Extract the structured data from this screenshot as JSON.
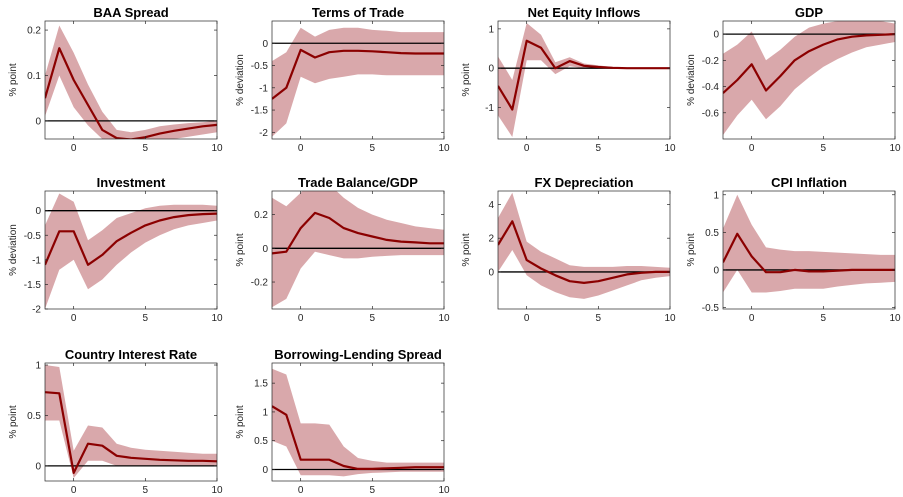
{
  "colors": {
    "line": "#8b0000",
    "band": "#d9a8ab",
    "zero": "#000000",
    "axis": "#262626"
  },
  "chart_data": [
    {
      "type": "line",
      "title": "BAA Spread",
      "ylabel": "% point",
      "xlim": [
        -2,
        10
      ],
      "ylim": [
        -0.04,
        0.22
      ],
      "xticks": [
        0,
        5,
        10
      ],
      "xtick_labels": [
        "0",
        "5",
        "10"
      ],
      "yticks": [
        0,
        0.1,
        0.2
      ],
      "ytick_labels": [
        "0",
        "0.1",
        "0.2"
      ],
      "x": [
        -2,
        -1,
        0,
        1,
        2,
        3,
        4,
        5,
        6,
        7,
        8,
        9,
        10
      ],
      "median": [
        0.05,
        0.16,
        0.09,
        0.035,
        -0.02,
        -0.038,
        -0.041,
        -0.036,
        -0.028,
        -0.022,
        -0.017,
        -0.012,
        -0.009
      ],
      "lower": [
        0.01,
        0.1,
        0.03,
        -0.01,
        -0.04,
        -0.05,
        -0.05,
        -0.05,
        -0.045,
        -0.04,
        -0.035,
        -0.03,
        -0.025
      ],
      "upper": [
        0.1,
        0.21,
        0.15,
        0.08,
        0.02,
        -0.02,
        -0.025,
        -0.02,
        -0.012,
        -0.008,
        -0.005,
        -0.003,
        0
      ]
    },
    {
      "type": "line",
      "title": "Terms of Trade",
      "ylabel": "% deviation",
      "xlim": [
        -2,
        10
      ],
      "ylim": [
        -2.15,
        0.5
      ],
      "xticks": [
        0,
        5,
        10
      ],
      "xtick_labels": [
        "0",
        "5",
        "10"
      ],
      "yticks": [
        -2,
        -1.5,
        -1,
        -0.5,
        0
      ],
      "ytick_labels": [
        "-2",
        "-1.5",
        "-1",
        "-0.5",
        "0"
      ],
      "x": [
        -2,
        -1,
        0,
        1,
        2,
        3,
        4,
        5,
        6,
        7,
        8,
        9,
        10
      ],
      "median": [
        -1.25,
        -1.0,
        -0.15,
        -0.32,
        -0.2,
        -0.17,
        -0.17,
        -0.18,
        -0.2,
        -0.22,
        -0.23,
        -0.23,
        -0.23
      ],
      "lower": [
        -2.1,
        -1.8,
        -0.75,
        -0.9,
        -0.8,
        -0.75,
        -0.7,
        -0.7,
        -0.72,
        -0.72,
        -0.72,
        -0.72,
        -0.72
      ],
      "upper": [
        -0.4,
        -0.2,
        0.35,
        0.15,
        0.3,
        0.35,
        0.35,
        0.3,
        0.28,
        0.25,
        0.25,
        0.25,
        0.25
      ]
    },
    {
      "type": "line",
      "title": "Net Equity Inflows",
      "ylabel": "% point",
      "xlim": [
        -2,
        10
      ],
      "ylim": [
        -1.8,
        1.2
      ],
      "xticks": [
        0,
        5,
        10
      ],
      "xtick_labels": [
        "0",
        "5",
        "10"
      ],
      "yticks": [
        -1,
        0,
        1
      ],
      "ytick_labels": [
        "-1",
        "0",
        "1"
      ],
      "x": [
        -2,
        -1,
        0,
        1,
        2,
        3,
        4,
        5,
        6,
        7,
        8,
        9,
        10
      ],
      "median": [
        -0.45,
        -1.05,
        0.7,
        0.52,
        0.0,
        0.18,
        0.06,
        0.03,
        0.01,
        0.0,
        0.0,
        0.0,
        0.0
      ],
      "lower": [
        -1.2,
        -1.75,
        0.2,
        0.2,
        -0.15,
        0.05,
        0.0,
        -0.01,
        -0.01,
        0.0,
        0.0,
        0.0,
        0.0
      ],
      "upper": [
        0.3,
        -0.3,
        1.15,
        0.85,
        0.15,
        0.28,
        0.12,
        0.07,
        0.03,
        0.01,
        0.0,
        0.0,
        0.0
      ]
    },
    {
      "type": "line",
      "title": "GDP",
      "ylabel": "% deviation",
      "xlim": [
        -2,
        10
      ],
      "ylim": [
        -0.8,
        0.1
      ],
      "xticks": [
        0,
        5,
        10
      ],
      "xtick_labels": [
        "0",
        "5",
        "10"
      ],
      "yticks": [
        -0.6,
        -0.4,
        -0.2,
        0
      ],
      "ytick_labels": [
        "-0.6",
        "-0.4",
        "-0.2",
        "0"
      ],
      "x": [
        -2,
        -1,
        0,
        1,
        2,
        3,
        4,
        5,
        6,
        7,
        8,
        9,
        10
      ],
      "median": [
        -0.45,
        -0.35,
        -0.23,
        -0.43,
        -0.32,
        -0.2,
        -0.13,
        -0.08,
        -0.04,
        -0.02,
        -0.01,
        -0.005,
        0.0
      ],
      "lower": [
        -0.77,
        -0.62,
        -0.5,
        -0.65,
        -0.55,
        -0.42,
        -0.33,
        -0.25,
        -0.19,
        -0.14,
        -0.1,
        -0.08,
        -0.06
      ],
      "upper": [
        -0.15,
        -0.08,
        0.02,
        -0.2,
        -0.12,
        -0.02,
        0.05,
        0.08,
        0.1,
        0.1,
        0.1,
        0.1,
        0.08
      ]
    },
    {
      "type": "line",
      "title": "Investment",
      "ylabel": "% deviation",
      "xlim": [
        -2,
        10
      ],
      "ylim": [
        -2.0,
        0.4
      ],
      "xticks": [
        0,
        5,
        10
      ],
      "xtick_labels": [
        "0",
        "5",
        "10"
      ],
      "yticks": [
        -2,
        -1.5,
        -1,
        -0.5,
        0
      ],
      "ytick_labels": [
        "-2",
        "-1.5",
        "-1",
        "-0.5",
        "0"
      ],
      "x": [
        -2,
        -1,
        0,
        1,
        2,
        3,
        4,
        5,
        6,
        7,
        8,
        9,
        10
      ],
      "median": [
        -1.1,
        -0.42,
        -0.42,
        -1.1,
        -0.9,
        -0.62,
        -0.45,
        -0.3,
        -0.2,
        -0.13,
        -0.09,
        -0.07,
        -0.06
      ],
      "lower": [
        -2.0,
        -1.2,
        -1.0,
        -1.6,
        -1.4,
        -1.1,
        -0.85,
        -0.65,
        -0.5,
        -0.38,
        -0.3,
        -0.25,
        -0.2
      ],
      "upper": [
        -0.3,
        0.35,
        0.18,
        -0.6,
        -0.4,
        -0.15,
        -0.05,
        0.05,
        0.1,
        0.12,
        0.12,
        0.12,
        0.1
      ]
    },
    {
      "type": "line",
      "title": "Trade Balance/GDP",
      "ylabel": "% point",
      "xlim": [
        -2,
        10
      ],
      "ylim": [
        -0.36,
        0.34
      ],
      "xticks": [
        0,
        5,
        10
      ],
      "xtick_labels": [
        "0",
        "5",
        "10"
      ],
      "yticks": [
        -0.2,
        0,
        0.2
      ],
      "ytick_labels": [
        "-0.2",
        "0",
        "0.2"
      ],
      "x": [
        -2,
        -1,
        0,
        1,
        2,
        3,
        4,
        5,
        6,
        7,
        8,
        9,
        10
      ],
      "median": [
        -0.03,
        -0.02,
        0.12,
        0.21,
        0.18,
        0.12,
        0.09,
        0.07,
        0.05,
        0.04,
        0.035,
        0.03,
        0.03
      ],
      "lower": [
        -0.35,
        -0.3,
        -0.12,
        -0.02,
        -0.04,
        -0.06,
        -0.06,
        -0.05,
        -0.045,
        -0.04,
        -0.04,
        -0.04,
        -0.04
      ],
      "upper": [
        0.3,
        0.25,
        0.33,
        0.42,
        0.38,
        0.3,
        0.24,
        0.2,
        0.17,
        0.15,
        0.13,
        0.12,
        0.11
      ]
    },
    {
      "type": "line",
      "title": "FX Depreciation",
      "ylabel": "% point",
      "xlim": [
        -2,
        10
      ],
      "ylim": [
        -2.2,
        4.8
      ],
      "xticks": [
        0,
        5,
        10
      ],
      "xtick_labels": [
        "0",
        "5",
        "10"
      ],
      "yticks": [
        0,
        2,
        4
      ],
      "ytick_labels": [
        "0",
        "2",
        "4"
      ],
      "x": [
        -2,
        -1,
        0,
        1,
        2,
        3,
        4,
        5,
        6,
        7,
        8,
        9,
        10
      ],
      "median": [
        1.6,
        3.0,
        0.7,
        0.2,
        -0.2,
        -0.55,
        -0.65,
        -0.55,
        -0.35,
        -0.15,
        -0.05,
        0.0,
        0.0
      ],
      "lower": [
        0.0,
        1.3,
        -0.2,
        -0.8,
        -1.2,
        -1.5,
        -1.6,
        -1.4,
        -1.1,
        -0.8,
        -0.5,
        -0.35,
        -0.25
      ],
      "upper": [
        3.2,
        4.7,
        1.8,
        1.2,
        0.8,
        0.4,
        0.3,
        0.3,
        0.3,
        0.35,
        0.35,
        0.3,
        0.25
      ]
    },
    {
      "type": "line",
      "title": "CPI Inflation",
      "ylabel": "% point",
      "xlim": [
        -2,
        10
      ],
      "ylim": [
        -0.52,
        1.05
      ],
      "xticks": [
        0,
        5,
        10
      ],
      "xtick_labels": [
        "0",
        "5",
        "10"
      ],
      "yticks": [
        -0.5,
        0,
        0.5,
        1
      ],
      "ytick_labels": [
        "-0.5",
        "0",
        "0.5",
        "1"
      ],
      "x": [
        -2,
        -1,
        0,
        1,
        2,
        3,
        4,
        5,
        6,
        7,
        8,
        9,
        10
      ],
      "median": [
        0.1,
        0.48,
        0.18,
        -0.03,
        -0.03,
        0.0,
        -0.02,
        -0.02,
        -0.01,
        0.0,
        0.0,
        0.0,
        0.0
      ],
      "lower": [
        -0.3,
        0.0,
        -0.3,
        -0.3,
        -0.28,
        -0.25,
        -0.25,
        -0.25,
        -0.22,
        -0.2,
        -0.18,
        -0.17,
        -0.16
      ],
      "upper": [
        0.55,
        1.0,
        0.6,
        0.3,
        0.27,
        0.25,
        0.25,
        0.24,
        0.23,
        0.22,
        0.21,
        0.2,
        0.2
      ]
    },
    {
      "type": "line",
      "title": "Country Interest Rate",
      "ylabel": "% point",
      "xlim": [
        -2,
        10
      ],
      "ylim": [
        -0.15,
        1.02
      ],
      "xticks": [
        0,
        5,
        10
      ],
      "xtick_labels": [
        "0",
        "5",
        "10"
      ],
      "yticks": [
        0,
        0.5,
        1
      ],
      "ytick_labels": [
        "0",
        "0.5",
        "1"
      ],
      "x": [
        -2,
        -1,
        0,
        1,
        2,
        3,
        4,
        5,
        6,
        7,
        8,
        9,
        10
      ],
      "median": [
        0.73,
        0.72,
        -0.07,
        0.22,
        0.2,
        0.1,
        0.08,
        0.07,
        0.06,
        0.055,
        0.05,
        0.05,
        0.045
      ],
      "lower": [
        0.45,
        0.45,
        -0.12,
        0.05,
        0.05,
        0.0,
        0.0,
        0.0,
        0.0,
        0.0,
        0.0,
        0.0,
        0.0
      ],
      "upper": [
        1.0,
        0.98,
        0.15,
        0.4,
        0.38,
        0.22,
        0.18,
        0.16,
        0.15,
        0.14,
        0.13,
        0.12,
        0.12
      ]
    },
    {
      "type": "line",
      "title": "Borrowing-Lending Spread",
      "ylabel": "% point",
      "xlim": [
        -2,
        10
      ],
      "ylim": [
        -0.2,
        1.85
      ],
      "xticks": [
        0,
        5,
        10
      ],
      "xtick_labels": [
        "0",
        "5",
        "10"
      ],
      "yticks": [
        0,
        0.5,
        1,
        1.5
      ],
      "ytick_labels": [
        "0",
        "0.5",
        "1",
        "1.5"
      ],
      "x": [
        -2,
        -1,
        0,
        1,
        2,
        3,
        4,
        5,
        6,
        7,
        8,
        9,
        10
      ],
      "median": [
        1.1,
        0.95,
        0.17,
        0.17,
        0.17,
        0.06,
        0.01,
        0.01,
        0.02,
        0.03,
        0.04,
        0.04,
        0.04
      ],
      "lower": [
        0.5,
        0.4,
        -0.1,
        -0.1,
        -0.1,
        -0.12,
        -0.08,
        -0.06,
        -0.05,
        -0.04,
        -0.04,
        -0.04,
        -0.04
      ],
      "upper": [
        1.75,
        1.65,
        0.8,
        0.8,
        0.78,
        0.4,
        0.2,
        0.15,
        0.12,
        0.12,
        0.12,
        0.12,
        0.12
      ]
    }
  ]
}
